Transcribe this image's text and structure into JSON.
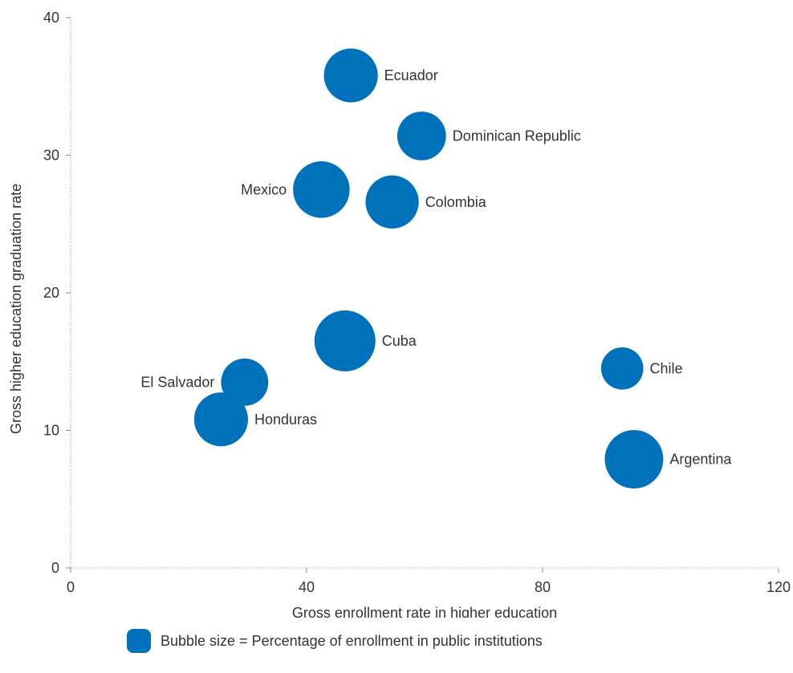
{
  "chart_data": {
    "type": "scatter",
    "title": "",
    "xlabel": "Gross enrollment rate in higher education",
    "ylabel": "Gross higher education graduation rate",
    "xlim": [
      0,
      120
    ],
    "ylim": [
      0,
      40
    ],
    "xticks": [
      "0",
      "40",
      "80",
      "120"
    ],
    "yticks": [
      "0",
      "10",
      "20",
      "30",
      "40"
    ],
    "bubble_color": "#0072BC",
    "axis_color": "#888888",
    "grid": false,
    "legend_position": "bottom",
    "legend_label": "Bubble size = Percentage of enrollment in public institutions",
    "points": [
      {
        "label": "Ecuador",
        "x": 47.5,
        "y": 35.8,
        "size": 78,
        "label_side": "right"
      },
      {
        "label": "Dominican Republic",
        "x": 59.5,
        "y": 31.4,
        "size": 64,
        "label_side": "right"
      },
      {
        "label": "Mexico",
        "x": 42.5,
        "y": 27.5,
        "size": 86,
        "label_side": "left"
      },
      {
        "label": "Colombia",
        "x": 54.5,
        "y": 26.6,
        "size": 76,
        "label_side": "right"
      },
      {
        "label": "Cuba",
        "x": 46.5,
        "y": 16.5,
        "size": 100,
        "label_side": "right"
      },
      {
        "label": "Chile",
        "x": 93.5,
        "y": 14.5,
        "size": 48,
        "label_side": "right"
      },
      {
        "label": "El Salvador",
        "x": 29.5,
        "y": 13.5,
        "size": 60,
        "label_side": "left"
      },
      {
        "label": "Honduras",
        "x": 25.5,
        "y": 10.8,
        "size": 78,
        "label_side": "right"
      },
      {
        "label": "Argentina",
        "x": 95.5,
        "y": 7.9,
        "size": 92,
        "label_side": "right"
      }
    ]
  }
}
